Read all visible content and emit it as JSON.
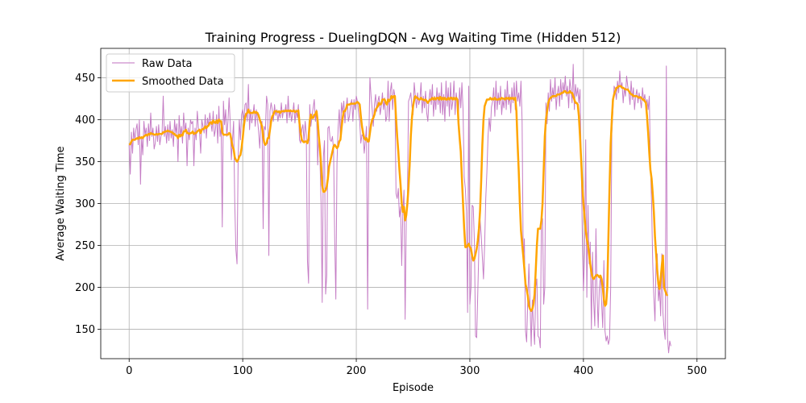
{
  "chart_data": {
    "type": "line",
    "title": "Training Progress - DuelingDQN - Avg Waiting Time (Hidden 512)",
    "xlabel": "Episode",
    "ylabel": "Average Waiting Time",
    "xlim": [
      -25,
      525
    ],
    "ylim": [
      115,
      485
    ],
    "xticks": [
      0,
      100,
      200,
      300,
      400,
      500
    ],
    "yticks": [
      150,
      200,
      250,
      300,
      350,
      400,
      450
    ],
    "grid": true,
    "legend": {
      "placement": "top-left",
      "entries": [
        "Raw Data",
        "Smoothed Data"
      ]
    },
    "colors": {
      "raw": "#bf6fbf",
      "smoothed": "#ffa500",
      "grid": "#b0b0b0"
    },
    "series": [
      {
        "name": "Raw Data",
        "x_start": 0,
        "x_step": 1,
        "values": [
          370,
          335,
          385,
          360,
          390,
          375,
          388,
          395,
          370,
          400,
          323,
          380,
          358,
          398,
          382,
          390,
          368,
          395,
          375,
          408,
          380,
          390,
          365,
          372,
          392,
          374,
          394,
          370,
          380,
          384,
          428,
          380,
          392,
          372,
          394,
          375,
          398,
          378,
          388,
          368,
          400,
          384,
          395,
          350,
          405,
          380,
          392,
          372,
          408,
          386,
          396,
          345,
          390,
          376,
          400,
          395,
          398,
          345,
          390,
          376,
          410,
          390,
          385,
          360,
          400,
          392,
          384,
          406,
          378,
          402,
          392,
          408,
          396,
          386,
          410,
          380,
          388,
          406,
          372,
          416,
          380,
          392,
          272,
          422,
          394,
          412,
          380,
          398,
          426,
          396,
          352,
          376,
          398,
          300,
          245,
          228,
          355,
          400,
          376,
          406,
          412,
          398,
          418,
          420,
          398,
          442,
          388,
          412,
          396,
          406,
          418,
          392,
          412,
          400,
          386,
          366,
          396,
          398,
          270,
          392,
          388,
          428,
          418,
          238,
          410,
          420,
          412,
          398,
          418,
          405,
          412,
          398,
          408,
          402,
          420,
          402,
          412,
          408,
          418,
          396,
          428,
          402,
          412,
          398,
          408,
          420,
          396,
          412,
          402,
          418,
          376,
          372,
          388,
          394,
          374,
          398,
          382,
          232,
          205,
          418,
          392,
          404,
          414,
          424,
          398,
          412,
          346,
          388,
          354,
          300,
          182,
          355,
          375,
          192,
          215,
          390,
          392,
          376,
          374,
          380,
          364,
          258,
          186,
          348,
          390,
          412,
          378,
          420,
          408,
          422,
          396,
          414,
          426,
          398,
          404,
          418,
          424,
          398,
          424,
          412,
          428,
          422,
          408,
          398,
          372,
          382,
          380,
          360,
          376,
          392,
          174,
          372,
          450,
          428,
          412,
          392,
          418,
          430,
          410,
          422,
          428,
          406,
          416,
          432,
          412,
          426,
          398,
          404,
          446,
          398,
          434,
          444,
          412,
          436,
          428,
          312,
          306,
          318,
          284,
          296,
          226,
          290,
          316,
          162,
          280,
          305,
          422,
          426,
          432,
          416,
          406,
          444,
          428,
          414,
          432,
          418,
          424,
          444,
          408,
          428,
          414,
          434,
          408,
          398,
          424,
          436,
          418,
          442,
          404,
          428,
          412,
          438,
          418,
          432,
          408,
          444,
          406,
          430,
          398,
          446,
          416,
          438,
          404,
          444,
          412,
          422,
          446,
          406,
          432,
          420,
          408,
          438,
          414,
          444,
          412,
          332,
          318,
          290,
          170,
          440,
          180,
          200,
          298,
          296,
          254,
          142,
          140,
          195,
          250,
          280,
          262,
          236,
          210,
          250,
          306,
          338,
          380,
          402,
          386,
          415,
          422,
          438,
          404,
          446,
          412,
          432,
          418,
          440,
          406,
          424,
          414,
          436,
          412,
          446,
          418,
          430,
          408,
          438,
          420,
          444,
          412,
          446,
          422,
          432,
          416,
          446,
          398,
          232,
          258,
          148,
          135,
          186,
          228,
          180,
          130,
          185,
          154,
          132,
          200,
          210,
          142,
          140,
          128,
          280,
          282,
          180,
          200,
          420,
          395,
          432,
          410,
          448,
          422,
          438,
          425,
          450,
          412,
          430,
          440,
          416,
          448,
          424,
          444,
          432,
          452,
          428,
          440,
          414,
          448,
          436,
          420,
          466,
          412,
          442,
          428,
          438,
          420,
          436,
          352,
          264,
          196,
          240,
          376,
          188,
          298,
          228,
          254,
          150,
          242,
          184,
          154,
          270,
          192,
          152,
          200,
          214,
          182,
          152,
          232,
          148,
          136,
          142,
          132,
          138,
          200,
          384,
          412,
          440,
          436,
          424,
          446,
          432,
          458,
          438,
          444,
          420,
          438,
          428,
          452,
          440,
          432,
          418,
          446,
          424,
          438,
          412,
          428,
          436,
          420,
          432,
          424,
          414,
          438,
          422,
          430,
          418,
          424,
          412,
          428,
          346,
          300,
          230,
          188,
          160,
          236,
          240,
          184,
          200,
          166,
          240,
          170,
          150,
          138,
          464,
          140,
          122,
          136,
          130
        ]
      },
      {
        "name": "Smoothed Data",
        "x_start": 0,
        "x_step": 1,
        "values": [
          370,
          371,
          374,
          376,
          376,
          376,
          377,
          378,
          377,
          379,
          378,
          379,
          378,
          380,
          381,
          382,
          381,
          383,
          382,
          384,
          383,
          383,
          382,
          382,
          383,
          382,
          383,
          383,
          383,
          383,
          385,
          385,
          386,
          386,
          387,
          386,
          386,
          385,
          385,
          383,
          383,
          381,
          381,
          378,
          382,
          380,
          382,
          381,
          386,
          386,
          388,
          384,
          384,
          383,
          384,
          384,
          386,
          383,
          384,
          384,
          386,
          387,
          388,
          384,
          388,
          389,
          389,
          392,
          390,
          392,
          393,
          396,
          397,
          395,
          399,
          397,
          396,
          399,
          396,
          400,
          398,
          398,
          385,
          382,
          382,
          382,
          382,
          382,
          384,
          383,
          376,
          368,
          365,
          355,
          352,
          350,
          352,
          356,
          358,
          366,
          378,
          392,
          402,
          407,
          408,
          412,
          408,
          408,
          408,
          408,
          410,
          408,
          409,
          408,
          405,
          400,
          396,
          392,
          380,
          372,
          370,
          372,
          378,
          378,
          388,
          398,
          404,
          406,
          410,
          410,
          410,
          409,
          410,
          408,
          410,
          410,
          410,
          410,
          411,
          410,
          411,
          410,
          411,
          410,
          410,
          411,
          409,
          410,
          410,
          411,
          396,
          384,
          376,
          374,
          373,
          374,
          374,
          372,
          378,
          398,
          406,
          402,
          402,
          406,
          406,
          410,
          398,
          380,
          366,
          346,
          322,
          314,
          314,
          316,
          320,
          330,
          344,
          350,
          356,
          362,
          368,
          370,
          368,
          366,
          368,
          374,
          376,
          390,
          402,
          410,
          410,
          413,
          418,
          418,
          418,
          419,
          419,
          419,
          419,
          419,
          420,
          421,
          420,
          418,
          404,
          392,
          384,
          378,
          376,
          378,
          374,
          374,
          384,
          394,
          400,
          402,
          406,
          412,
          414,
          416,
          420,
          418,
          419,
          424,
          424,
          424,
          420,
          418,
          424,
          422,
          424,
          428,
          426,
          428,
          428,
          402,
          380,
          362,
          340,
          322,
          300,
          290,
          296,
          280,
          286,
          300,
          320,
          346,
          380,
          402,
          416,
          424,
          428,
          426,
          426,
          424,
          424,
          426,
          424,
          424,
          423,
          424,
          422,
          420,
          422,
          424,
          424,
          426,
          424,
          426,
          424,
          426,
          426,
          424,
          427,
          424,
          426,
          424,
          426,
          424,
          424,
          426,
          424,
          426,
          426,
          424,
          426,
          424,
          426,
          424,
          396,
          378,
          362,
          330,
          300,
          270,
          248,
          248,
          250,
          252,
          248,
          246,
          238,
          232,
          234,
          240,
          246,
          256,
          270,
          292,
          328,
          370,
          400,
          416,
          420,
          424,
          424,
          424,
          426,
          424,
          425,
          424,
          426,
          424,
          424,
          424,
          425,
          424,
          426,
          425,
          425,
          424,
          426,
          425,
          426,
          424,
          426,
          425,
          426,
          424,
          426,
          410,
          372,
          340,
          300,
          268,
          252,
          238,
          222,
          204,
          198,
          190,
          178,
          174,
          172,
          174,
          180,
          192,
          220,
          250,
          270,
          270,
          270,
          280,
          300,
          340,
          380,
          400,
          410,
          420,
          424,
          426,
          427,
          428,
          428,
          428,
          428,
          430,
          430,
          430,
          431,
          432,
          432,
          434,
          434,
          432,
          432,
          432,
          434,
          432,
          432,
          428,
          424,
          420,
          420,
          418,
          404,
          380,
          352,
          322,
          300,
          284,
          268,
          258,
          250,
          240,
          228,
          218,
          212,
          210,
          212,
          214,
          215,
          214,
          212,
          214,
          210,
          200,
          186,
          178,
          180,
          200,
          260,
          320,
          372,
          400,
          424,
          430,
          434,
          438,
          438,
          440,
          440,
          440,
          438,
          438,
          437,
          436,
          436,
          436,
          434,
          432,
          430,
          430,
          428,
          428,
          428,
          428,
          427,
          426,
          427,
          426,
          424,
          424,
          422,
          420,
          404,
          384,
          360,
          340,
          330,
          312,
          290,
          260,
          240,
          220,
          204,
          198,
          210,
          226,
          238,
          200,
          196,
          192,
          190
        ]
      }
    ]
  }
}
